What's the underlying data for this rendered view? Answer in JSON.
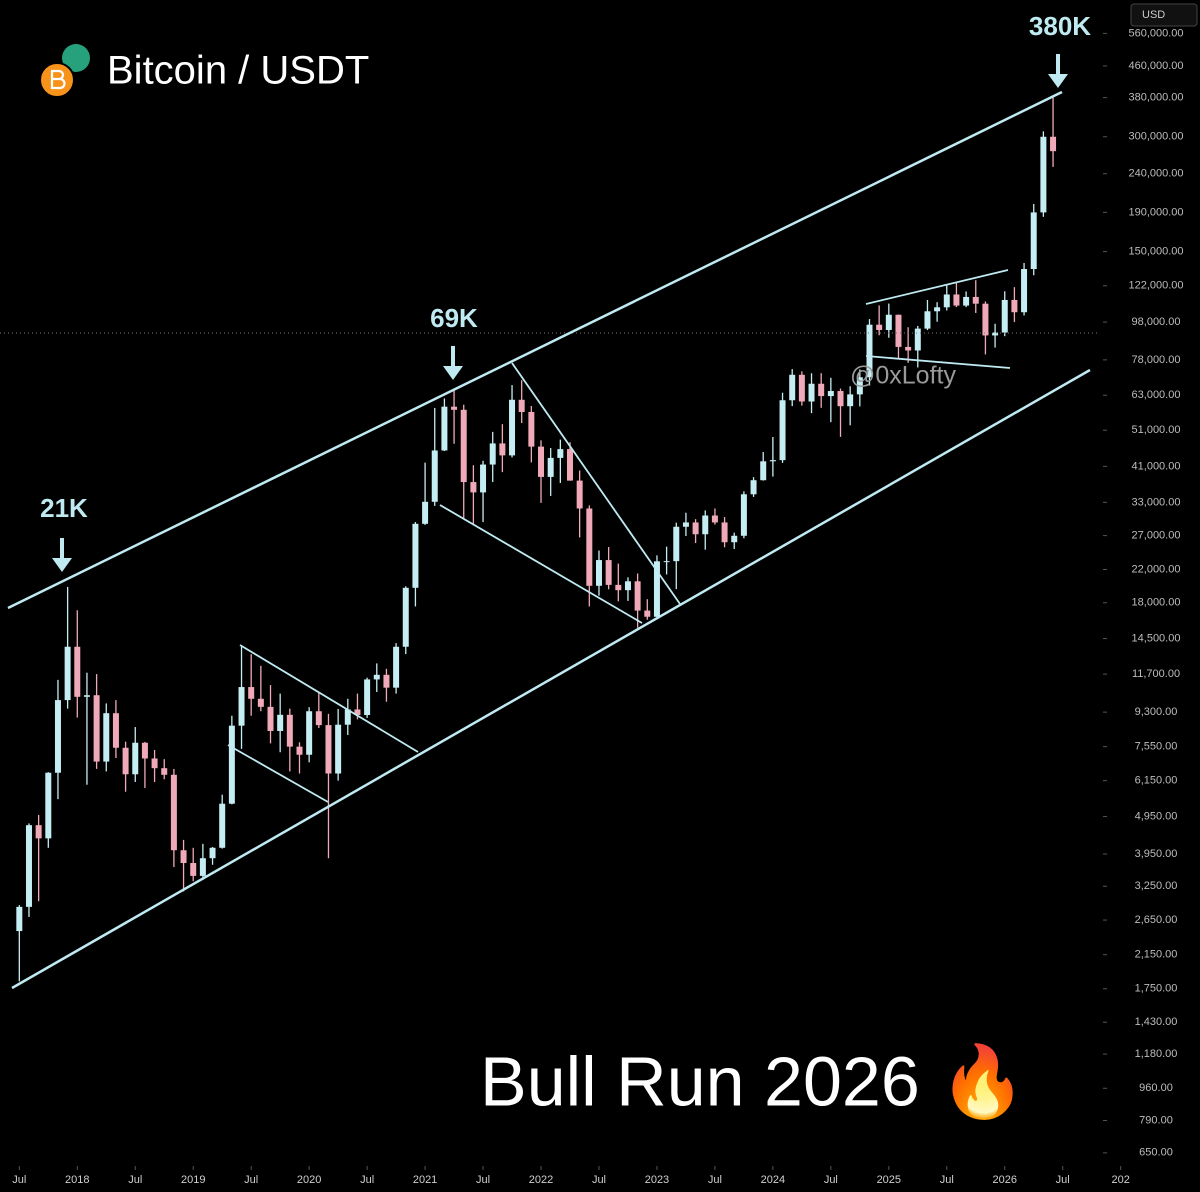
{
  "chart_data": {
    "type": "candlestick",
    "title": "Bitcoin / USDT",
    "subtitle": "Bull Run 2026 🔥",
    "watermark": "@0xLofty",
    "currency": "USD",
    "annotations": [
      "21K",
      "69K",
      "380K"
    ],
    "up_color": "#c4eef3",
    "down_color": "#f0a9b8",
    "log_scale": true,
    "xlim": [
      "2017-05",
      "2027-03"
    ],
    "ylim": [
      604,
      685000
    ],
    "xticks": [
      {
        "value": "2017-07",
        "label": "Jul"
      },
      {
        "value": "2018-01",
        "label": "2018"
      },
      {
        "value": "2018-07",
        "label": "Jul"
      },
      {
        "value": "2019-01",
        "label": "2019"
      },
      {
        "value": "2019-07",
        "label": "Jul"
      },
      {
        "value": "2020-01",
        "label": "2020"
      },
      {
        "value": "2020-07",
        "label": "Jul"
      },
      {
        "value": "2021-01",
        "label": "2021"
      },
      {
        "value": "2021-07",
        "label": "Jul"
      },
      {
        "value": "2022-01",
        "label": "2022"
      },
      {
        "value": "2022-07",
        "label": "Jul"
      },
      {
        "value": "2023-01",
        "label": "2023"
      },
      {
        "value": "2023-07",
        "label": "Jul"
      },
      {
        "value": "2024-01",
        "label": "2024"
      },
      {
        "value": "2024-07",
        "label": "Jul"
      },
      {
        "value": "2025-01",
        "label": "2025"
      },
      {
        "value": "2025-07",
        "label": "Jul"
      },
      {
        "value": "2026-01",
        "label": "2026"
      },
      {
        "value": "2026-07",
        "label": "Jul"
      },
      {
        "value": "2027-01",
        "label": "202"
      }
    ],
    "yticks": [
      {
        "value": 560000,
        "label": "560,000.00"
      },
      {
        "value": 460000,
        "label": "460,000.00"
      },
      {
        "value": 380000,
        "label": "380,000.00"
      },
      {
        "value": 300000,
        "label": "300,000.00"
      },
      {
        "value": 240000,
        "label": "240,000.00"
      },
      {
        "value": 190000,
        "label": "190,000.00"
      },
      {
        "value": 150000,
        "label": "150,000.00"
      },
      {
        "value": 122000,
        "label": "122,000.00"
      },
      {
        "value": 98000,
        "label": "98,000.00"
      },
      {
        "value": 78000,
        "label": "78,000.00"
      },
      {
        "value": 63000,
        "label": "63,000.00"
      },
      {
        "value": 51000,
        "label": "51,000.00"
      },
      {
        "value": 41000,
        "label": "41,000.00"
      },
      {
        "value": 33000,
        "label": "33,000.00"
      },
      {
        "value": 27000,
        "label": "27,000.00"
      },
      {
        "value": 22000,
        "label": "22,000.00"
      },
      {
        "value": 18000,
        "label": "18,000.00"
      },
      {
        "value": 14500,
        "label": "14,500.00"
      },
      {
        "value": 11700,
        "label": "11,700.00"
      },
      {
        "value": 9300,
        "label": "9,300.00"
      },
      {
        "value": 7550,
        "label": "7,550.00"
      },
      {
        "value": 6150,
        "label": "6,150.00"
      },
      {
        "value": 4950,
        "label": "4,950.00"
      },
      {
        "value": 3950,
        "label": "3,950.00"
      },
      {
        "value": 3250,
        "label": "3,250.00"
      },
      {
        "value": 2650,
        "label": "2,650.00"
      },
      {
        "value": 2150,
        "label": "2,150.00"
      },
      {
        "value": 1750,
        "label": "1,750.00"
      },
      {
        "value": 1430,
        "label": "1,430.00"
      },
      {
        "value": 1180,
        "label": "1,180.00"
      },
      {
        "value": 960,
        "label": "960.00"
      },
      {
        "value": 790,
        "label": "790.00"
      },
      {
        "value": 650,
        "label": "650.00"
      }
    ],
    "x": [
      "2017-07",
      "2017-08",
      "2017-09",
      "2017-10",
      "2017-11",
      "2017-12",
      "2018-01",
      "2018-02",
      "2018-03",
      "2018-04",
      "2018-05",
      "2018-06",
      "2018-07",
      "2018-08",
      "2018-09",
      "2018-10",
      "2018-11",
      "2018-12",
      "2019-01",
      "2019-02",
      "2019-03",
      "2019-04",
      "2019-05",
      "2019-06",
      "2019-07",
      "2019-08",
      "2019-09",
      "2019-10",
      "2019-11",
      "2019-12",
      "2020-01",
      "2020-02",
      "2020-03",
      "2020-04",
      "2020-05",
      "2020-06",
      "2020-07",
      "2020-08",
      "2020-09",
      "2020-10",
      "2020-11",
      "2020-12",
      "2021-01",
      "2021-02",
      "2021-03",
      "2021-04",
      "2021-05",
      "2021-06",
      "2021-07",
      "2021-08",
      "2021-09",
      "2021-10",
      "2021-11",
      "2021-12",
      "2022-01",
      "2022-02",
      "2022-03",
      "2022-04",
      "2022-05",
      "2022-06",
      "2022-07",
      "2022-08",
      "2022-09",
      "2022-10",
      "2022-11",
      "2022-12",
      "2023-01",
      "2023-02",
      "2023-03",
      "2023-04",
      "2023-05",
      "2023-06",
      "2023-07",
      "2023-08",
      "2023-09",
      "2023-10",
      "2023-11",
      "2023-12",
      "2024-01",
      "2024-02",
      "2024-03",
      "2024-04",
      "2024-05",
      "2024-06",
      "2024-07",
      "2024-08",
      "2024-09",
      "2024-10",
      "2024-11",
      "2024-12",
      "2025-01",
      "2025-02",
      "2025-03",
      "2025-04",
      "2025-05",
      "2025-06",
      "2025-07",
      "2025-08",
      "2025-09",
      "2025-10",
      "2025-11",
      "2025-12",
      "2026-01",
      "2026-02",
      "2026-03",
      "2026-04",
      "2026-05",
      "2026-06"
    ],
    "open": [
      2480,
      2870,
      4700,
      4340,
      6450,
      10000,
      13800,
      10200,
      10300,
      6900,
      9240,
      7500,
      6390,
      7730,
      7030,
      6630,
      6370,
      4040,
      3740,
      3460,
      3850,
      4100,
      5350,
      8570,
      10820,
      10080,
      9600,
      8300,
      9150,
      7550,
      7190,
      9350,
      8600,
      6420,
      8620,
      9450,
      9140,
      11330,
      11650,
      10780,
      13800,
      19700,
      28990,
      33110,
      45140,
      58800,
      57700,
      37300,
      35040,
      41460,
      47100,
      43820,
      61300,
      56950,
      46200,
      38480,
      43160,
      45510,
      37630,
      31800,
      19940,
      23290,
      20050,
      19420,
      20490,
      17170,
      16540,
      23120,
      23140,
      28480,
      29230,
      27220,
      30480,
      29230,
      25940,
      26970,
      34650,
      37720,
      42280,
      42580,
      61130,
      71290,
      60670,
      67530,
      62680,
      64630,
      58970,
      63330,
      70220,
      96450,
      93430,
      102430,
      84350,
      82550,
      94200,
      104600,
      107140,
      115760,
      108250,
      114050,
      109500,
      90400,
      92000,
      112000,
      104000,
      135000,
      190000,
      300000
    ],
    "high": [
      2900,
      4750,
      5000,
      6470,
      11300,
      19800,
      17200,
      11800,
      11700,
      9800,
      10000,
      7780,
      8500,
      7770,
      7400,
      7000,
      6600,
      4300,
      4100,
      4200,
      4120,
      5650,
      9100,
      13900,
      13200,
      12300,
      10950,
      10400,
      9500,
      7750,
      9580,
      10500,
      9200,
      9480,
      10080,
      10400,
      11450,
      12480,
      12080,
      14100,
      19880,
      29300,
      41950,
      58350,
      61800,
      64900,
      59500,
      41300,
      42400,
      50500,
      52900,
      67000,
      69000,
      59050,
      48000,
      45800,
      48200,
      47450,
      40000,
      32400,
      24670,
      25200,
      22800,
      20990,
      21480,
      18390,
      23960,
      25250,
      29190,
      31000,
      29820,
      31430,
      31800,
      30200,
      27480,
      35280,
      38420,
      44730,
      48970,
      63970,
      73780,
      72800,
      71950,
      71980,
      70000,
      65600,
      66500,
      73620,
      99800,
      108350,
      109590,
      102500,
      95000,
      95750,
      111980,
      110500,
      123200,
      124450,
      117900,
      126200,
      111000,
      97000,
      118000,
      121000,
      140000,
      200000,
      310000,
      385000
    ],
    "low": [
      1830,
      2700,
      2970,
      4100,
      5500,
      9500,
      9000,
      6000,
      6600,
      6500,
      7050,
      5750,
      6100,
      5880,
      6100,
      6200,
      3650,
      3150,
      3350,
      3380,
      3700,
      4080,
      5330,
      7450,
      9100,
      9350,
      7700,
      7300,
      6500,
      6420,
      6870,
      8450,
      3850,
      6150,
      8100,
      8900,
      8980,
      10500,
      9900,
      10400,
      13200,
      17600,
      28800,
      32300,
      45000,
      47000,
      30000,
      28800,
      29300,
      37300,
      39600,
      43280,
      53250,
      42000,
      32900,
      34300,
      37100,
      37600,
      26700,
      17600,
      18780,
      19520,
      18150,
      18200,
      15480,
      16250,
      16500,
      21350,
      19550,
      26940,
      25810,
      24800,
      28860,
      25160,
      24900,
      26560,
      34100,
      37630,
      38550,
      41880,
      59000,
      59190,
      56550,
      58400,
      53550,
      49000,
      52550,
      58900,
      66830,
      90500,
      89160,
      78260,
      76600,
      74500,
      93380,
      98200,
      105100,
      107300,
      107250,
      103500,
      80600,
      84000,
      90000,
      98000,
      102000,
      130000,
      185000,
      250000
    ],
    "close": [
      2870,
      4700,
      4340,
      6450,
      10000,
      13800,
      10200,
      10300,
      6900,
      9240,
      7500,
      6390,
      7730,
      7030,
      6630,
      6370,
      4040,
      3740,
      3460,
      3850,
      4100,
      5350,
      8570,
      10820,
      10080,
      9600,
      8300,
      9150,
      7550,
      7190,
      9350,
      8600,
      6420,
      8620,
      9450,
      9140,
      11330,
      11650,
      10780,
      13800,
      19700,
      28990,
      33110,
      45140,
      58800,
      57700,
      37300,
      35040,
      41460,
      47100,
      43820,
      61300,
      56950,
      46200,
      38480,
      43160,
      45510,
      37630,
      31800,
      19940,
      23290,
      20050,
      19420,
      20490,
      17170,
      16540,
      23120,
      23140,
      28480,
      29230,
      27220,
      30480,
      29230,
      25940,
      26970,
      34650,
      37720,
      42280,
      42580,
      61130,
      71290,
      60670,
      67530,
      62680,
      64630,
      58970,
      63330,
      70220,
      96450,
      93430,
      102430,
      84350,
      82550,
      94200,
      104600,
      107140,
      115760,
      108250,
      114050,
      109500,
      90400,
      92000,
      112000,
      104000,
      135000,
      190000,
      300000,
      275000
    ]
  }
}
